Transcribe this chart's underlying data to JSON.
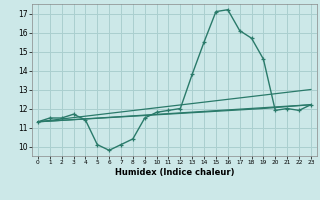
{
  "xlabel": "Humidex (Indice chaleur)",
  "xlim": [
    -0.5,
    23.5
  ],
  "ylim": [
    9.5,
    17.5
  ],
  "yticks": [
    10,
    11,
    12,
    13,
    14,
    15,
    16,
    17
  ],
  "xticks": [
    0,
    1,
    2,
    3,
    4,
    5,
    6,
    7,
    8,
    9,
    10,
    11,
    12,
    13,
    14,
    15,
    16,
    17,
    18,
    19,
    20,
    21,
    22,
    23
  ],
  "xtick_labels": [
    "0",
    "1",
    "2",
    "3",
    "4",
    "5",
    "6",
    "7",
    "8",
    "9",
    "10",
    "11",
    "12",
    "13",
    "14",
    "15",
    "16",
    "17",
    "18",
    "19",
    "20",
    "21",
    "22",
    "23"
  ],
  "bg_color": "#cce8e8",
  "grid_color": "#aacfcf",
  "line_color": "#2a7a6a",
  "line1_x": [
    0,
    1,
    2,
    3,
    4,
    5,
    6,
    7,
    8,
    9,
    10,
    11,
    12,
    13,
    14,
    15,
    16,
    17,
    18,
    19,
    20,
    21,
    22,
    23
  ],
  "line1_y": [
    11.3,
    11.5,
    11.5,
    11.7,
    11.4,
    10.1,
    9.8,
    10.1,
    10.4,
    11.5,
    11.8,
    11.9,
    12.0,
    13.8,
    15.5,
    17.1,
    17.2,
    16.1,
    15.7,
    14.6,
    11.9,
    12.0,
    11.9,
    12.2
  ],
  "line2_x": [
    0,
    23
  ],
  "line2_y": [
    11.3,
    12.2
  ],
  "line3_x": [
    0,
    23
  ],
  "line3_y": [
    11.3,
    13.0
  ],
  "line4_x": [
    0,
    19,
    23
  ],
  "line4_y": [
    11.3,
    12.0,
    12.2
  ]
}
